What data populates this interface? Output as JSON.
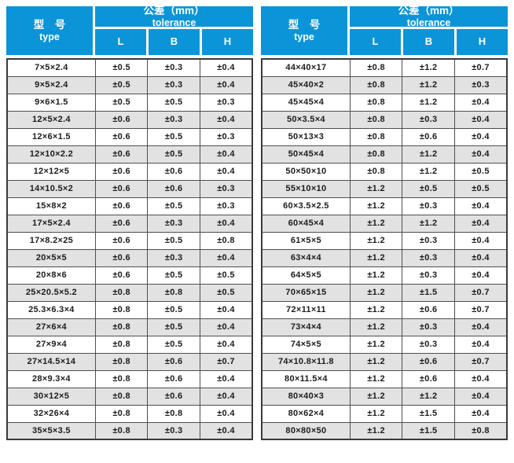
{
  "header": {
    "type_label_zh": "型　号",
    "type_label_en": "type",
    "tolerance_label_zh": "公差（mm）",
    "tolerance_label_en": "tolerance",
    "columns": [
      "L",
      "B",
      "H"
    ]
  },
  "colors": {
    "header_blue": "#0B95D8",
    "row_gray": "#E2E2E2",
    "border_dark": "#3A3A3A",
    "grid_line": "#4F4F4F",
    "text_dark": "#1C1C1C"
  },
  "tables": [
    {
      "rows": [
        [
          "7×5×2.4",
          "±0.5",
          "±0.3",
          "±0.4"
        ],
        [
          "9×5×2.4",
          "±0.5",
          "±0.3",
          "±0.4"
        ],
        [
          "9×6×1.5",
          "±0.5",
          "±0.5",
          "±0.3"
        ],
        [
          "12×5×2.4",
          "±0.6",
          "±0.3",
          "±0.4"
        ],
        [
          "12×6×1.5",
          "±0.6",
          "±0.5",
          "±0.3"
        ],
        [
          "12×10×2.2",
          "±0.6",
          "±0.5",
          "±0.4"
        ],
        [
          "12×12×5",
          "±0.6",
          "±0.6",
          "±0.4"
        ],
        [
          "14×10.5×2",
          "±0.6",
          "±0.6",
          "±0.3"
        ],
        [
          "15×8×2",
          "±0.6",
          "±0.5",
          "±0.3"
        ],
        [
          "17×5×2.4",
          "±0.6",
          "±0.3",
          "±0.4"
        ],
        [
          "17×8.2×25",
          "±0.6",
          "±0.5",
          "±0.8"
        ],
        [
          "20×5×5",
          "±0.6",
          "±0.3",
          "±0.4"
        ],
        [
          "20×8×6",
          "±0.6",
          "±0.5",
          "±0.5"
        ],
        [
          "25×20.5×5.2",
          "±0.8",
          "±0.8",
          "±0.5"
        ],
        [
          "25.3×6.3×4",
          "±0.8",
          "±0.5",
          "±0.4"
        ],
        [
          "27×6×4",
          "±0.8",
          "±0.5",
          "±0.4"
        ],
        [
          "27×9×4",
          "±0.8",
          "±0.5",
          "±0.4"
        ],
        [
          "27×14.5×14",
          "±0.8",
          "±0.6",
          "±0.7"
        ],
        [
          "28×9.3×4",
          "±0.8",
          "±0.6",
          "±0.4"
        ],
        [
          "30×12×5",
          "±0.8",
          "±0.6",
          "±0.4"
        ],
        [
          "32×26×4",
          "±0.8",
          "±0.8",
          "±0.4"
        ],
        [
          "35×5×3.5",
          "±0.8",
          "±0.3",
          "±0.4"
        ]
      ]
    },
    {
      "rows": [
        [
          "44×40×17",
          "±0.8",
          "±1.2",
          "±0.7"
        ],
        [
          "45×40×2",
          "±0.8",
          "±1.2",
          "±0.3"
        ],
        [
          "45×45×4",
          "±0.8",
          "±1.2",
          "±0.4"
        ],
        [
          "50×3.5×4",
          "±0.8",
          "±0.3",
          "±0.4"
        ],
        [
          "50×13×3",
          "±0.8",
          "±0.6",
          "±0.4"
        ],
        [
          "50×45×4",
          "±0.8",
          "±1.2",
          "±0.4"
        ],
        [
          "50×50×10",
          "±0.8",
          "±1.2",
          "±0.5"
        ],
        [
          "55×10×10",
          "±1.2",
          "±0.5",
          "±0.5"
        ],
        [
          "60×3.5×2.5",
          "±1.2",
          "±0.3",
          "±0.4"
        ],
        [
          "60×45×4",
          "±1.2",
          "±1.2",
          "±0.4"
        ],
        [
          "61×5×5",
          "±1.2",
          "±0.3",
          "±0.4"
        ],
        [
          "63×4×4",
          "±1.2",
          "±0.3",
          "±0.4"
        ],
        [
          "64×5×5",
          "±1.2",
          "±0.3",
          "±0.4"
        ],
        [
          "70×65×15",
          "±1.2",
          "±1.5",
          "±0.7"
        ],
        [
          "72×11×11",
          "±1.2",
          "±0.6",
          "±0.7"
        ],
        [
          "73×4×4",
          "±1.2",
          "±0.3",
          "±0.4"
        ],
        [
          "74×5×5",
          "±1.2",
          "±0.3",
          "±0.4"
        ],
        [
          "74×10.8×11.8",
          "±1.2",
          "±0.6",
          "±0.7"
        ],
        [
          "80×11.5×4",
          "±1.2",
          "±0.6",
          "±0.4"
        ],
        [
          "80×40×3",
          "±1.2",
          "±1.2",
          "±0.4"
        ],
        [
          "80×62×4",
          "±1.2",
          "±1.5",
          "±0.4"
        ],
        [
          "80×80×50",
          "±1.2",
          "±1.5",
          "±0.8"
        ]
      ]
    }
  ]
}
